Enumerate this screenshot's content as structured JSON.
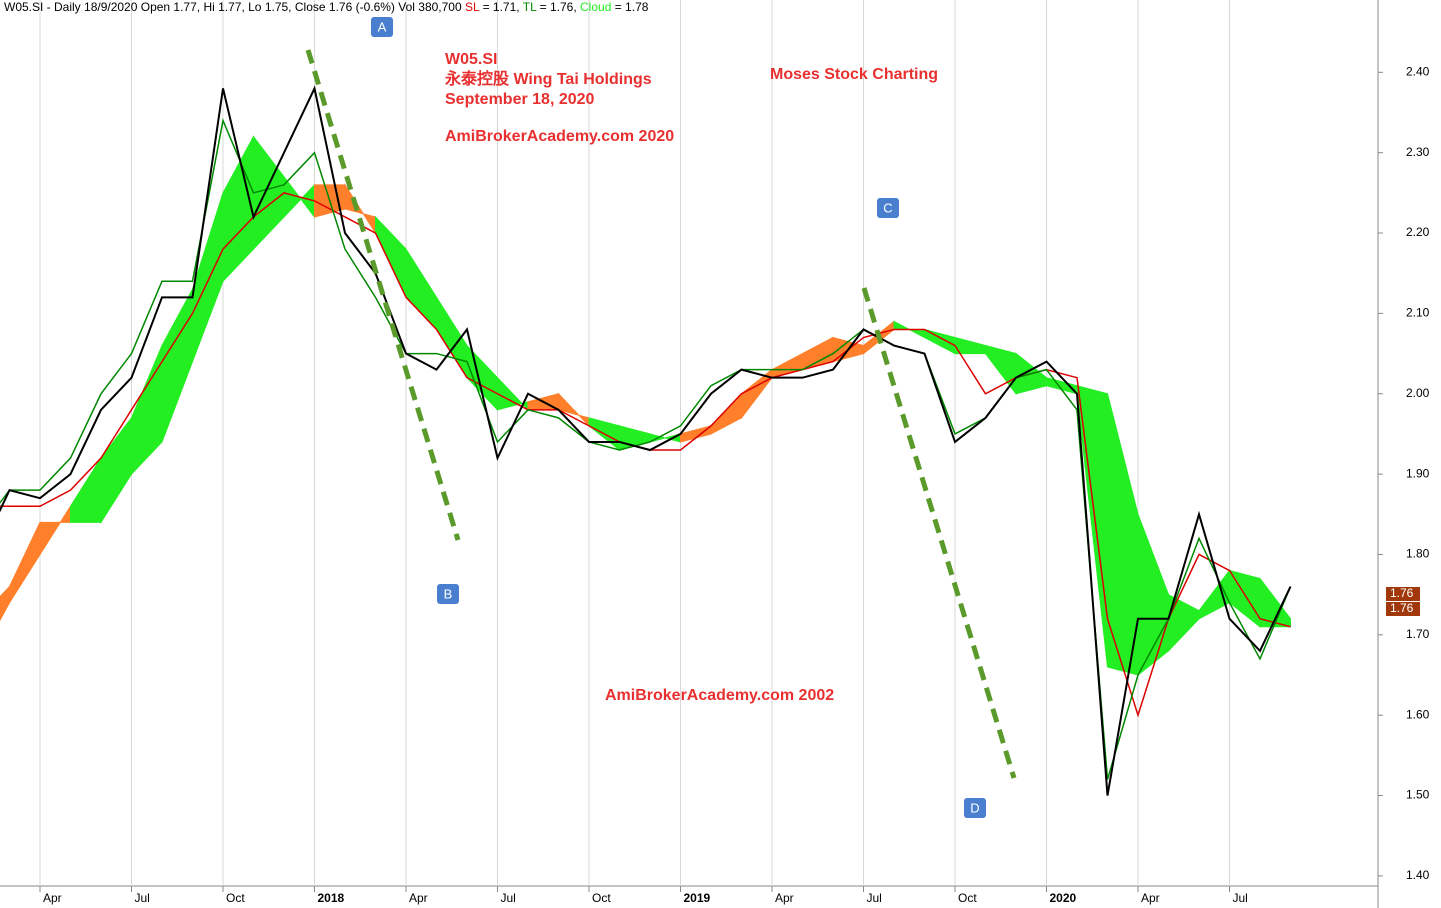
{
  "chart_data": {
    "type": "ichimoku",
    "header": [
      "W05.SI - Daily 18/9/2020 Open 1.77, Hi 1.77, Lo 1.75,",
      "1.76 (-0.6%) Vol 380,700",
      "= 1.71,",
      "= 1.76,",
      "= 1.78"
    ],
    "annotations": [
      "W05.SI",
      "永泰控股  Wing Tai Holdings",
      "September 18, 2020",
      "AmiBrokerAcademy.com  2020",
      "Moses Stock Charting",
      "AmiBrokerAcademy.com  2002"
    ],
    "markers": [
      "A",
      "B",
      "C",
      "D"
    ],
    "categories": [
      null,
      null,
      "Apr",
      null,
      null,
      "Jul",
      null,
      null,
      "Oct",
      null,
      null,
      "2018",
      null,
      null,
      "Apr",
      null,
      null,
      "Jul",
      null,
      null,
      "Oct",
      null,
      null,
      "2019",
      null,
      null,
      "Apr",
      null,
      null,
      "Jul",
      null,
      null,
      "Oct",
      null,
      null,
      "2020",
      null,
      null,
      "Apr",
      null,
      null,
      "Jul",
      null,
      null
    ],
    "series": [
      {
        "name": "Close",
        "color": "#000000",
        "values": [
          1.8,
          1.88,
          1.87,
          1.9,
          1.98,
          2.02,
          2.12,
          2.12,
          2.38,
          2.22,
          2.3,
          2.38,
          2.2,
          2.15,
          2.05,
          2.03,
          2.08,
          1.92,
          2.0,
          1.98,
          1.94,
          1.94,
          1.93,
          1.95,
          2.0,
          2.03,
          2.02,
          2.02,
          2.03,
          2.08,
          2.06,
          2.05,
          1.94,
          1.97,
          2.02,
          2.04,
          2.0,
          1.5,
          1.72,
          1.72,
          1.85,
          1.72,
          1.68,
          1.76
        ]
      },
      {
        "name": "SL",
        "color": "#dd0000",
        "values": [
          1.86,
          1.86,
          1.86,
          1.88,
          1.92,
          1.98,
          2.04,
          2.1,
          2.18,
          2.22,
          2.25,
          2.24,
          2.22,
          2.2,
          2.12,
          2.08,
          2.02,
          2.0,
          1.98,
          1.98,
          1.96,
          1.94,
          1.93,
          1.93,
          1.96,
          2.0,
          2.02,
          2.03,
          2.04,
          2.07,
          2.08,
          2.08,
          2.06,
          2.0,
          2.02,
          2.03,
          2.02,
          1.72,
          1.6,
          1.72,
          1.8,
          1.78,
          1.72,
          1.71
        ]
      },
      {
        "name": "TL",
        "color": "#008800",
        "values": [
          1.83,
          1.88,
          1.88,
          1.92,
          2.0,
          2.05,
          2.14,
          2.14,
          2.34,
          2.25,
          2.26,
          2.3,
          2.18,
          2.12,
          2.05,
          2.05,
          2.04,
          1.94,
          1.98,
          1.97,
          1.94,
          1.93,
          1.94,
          1.96,
          2.01,
          2.03,
          2.03,
          2.03,
          2.05,
          2.08,
          2.06,
          2.05,
          1.95,
          1.97,
          2.02,
          2.03,
          1.98,
          1.52,
          1.65,
          1.72,
          1.82,
          1.74,
          1.67,
          1.76
        ]
      }
    ],
    "cloud": {
      "name": "Cloud",
      "color": "#22ee22",
      "down_color": "#ff7f2a",
      "span_a": [
        1.67,
        1.74,
        1.8,
        1.86,
        1.92,
        1.97,
        2.06,
        2.13,
        2.25,
        2.32,
        2.27,
        2.22,
        2.23,
        2.22,
        2.18,
        2.12,
        2.06,
        2.02,
        1.98,
        1.98,
        1.97,
        1.96,
        1.95,
        1.94,
        1.95,
        1.97,
        2.02,
        2.03,
        2.04,
        2.05,
        2.08,
        2.08,
        2.07,
        2.06,
        2.05,
        2.02,
        2.01,
        2.0,
        1.85,
        1.75,
        1.73,
        1.78,
        1.77,
        1.72
      ],
      "span_b": [
        1.72,
        1.76,
        1.84,
        1.84,
        1.84,
        1.9,
        1.94,
        2.04,
        2.14,
        2.18,
        2.22,
        2.26,
        2.26,
        2.2,
        2.12,
        2.08,
        2.02,
        1.98,
        1.99,
        2.0,
        1.96,
        1.93,
        1.94,
        1.95,
        1.96,
        2.0,
        2.03,
        2.05,
        2.07,
        2.06,
        2.09,
        2.07,
        2.05,
        2.05,
        2.0,
        2.01,
        2.0,
        1.66,
        1.65,
        1.68,
        1.72,
        1.74,
        1.71,
        1.71
      ]
    },
    "ylim": [
      1.37,
      2.49
    ],
    "yticks": [
      {
        "value": 1.4,
        "label": "1.40"
      },
      {
        "value": 1.5,
        "label": "1.50"
      },
      {
        "value": 1.6,
        "label": "1.60"
      },
      {
        "value": 1.7,
        "label": "1.70"
      },
      {
        "value": 1.8,
        "label": "1.80"
      },
      {
        "value": 1.9,
        "label": "1.90"
      },
      {
        "value": 2.0,
        "label": "2.00"
      },
      {
        "value": 2.1,
        "label": "2.10"
      },
      {
        "value": 2.2,
        "label": "2.20"
      },
      {
        "value": 2.3,
        "label": "2.30"
      },
      {
        "value": 2.4,
        "label": "2.40"
      }
    ]
  }
}
